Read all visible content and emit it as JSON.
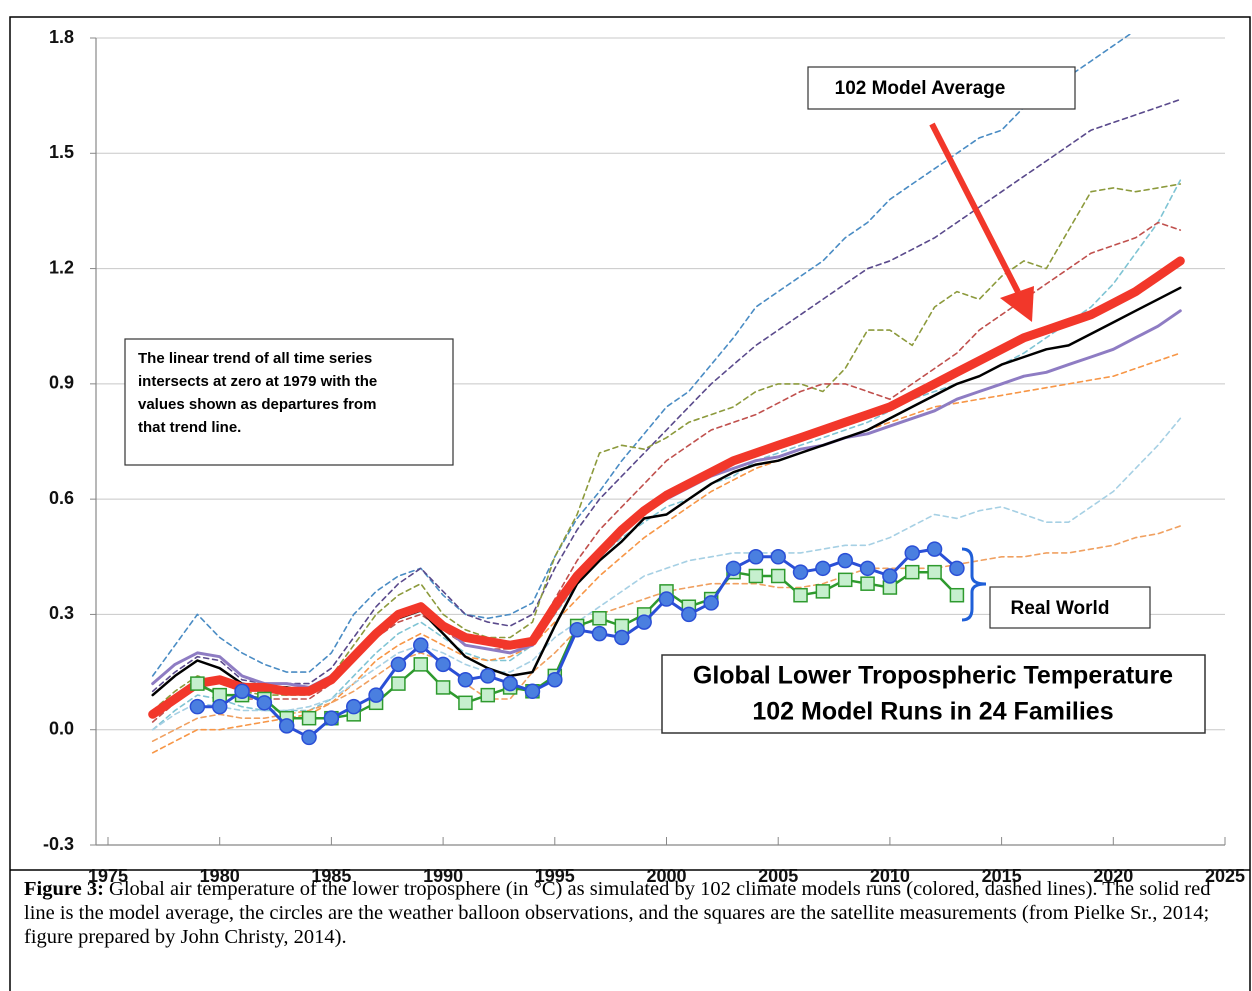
{
  "chart_data": {
    "type": "line",
    "title": "Global Lower Tropospheric Temperature",
    "subtitle": "102 Model Runs in 24 Families",
    "annotations": {
      "model_average": "102 Model Average",
      "trend_note": [
        "The linear trend of all time series",
        "intersects at zero at 1979 with the",
        "values shown as departures from",
        "that trend line."
      ],
      "real_world": "Real World"
    },
    "xlim": [
      1975,
      2025
    ],
    "xticks": [
      1975,
      1980,
      1985,
      1990,
      1995,
      2000,
      2005,
      2010,
      2015,
      2020,
      2025
    ],
    "ylim": [
      -0.3,
      1.8
    ],
    "yticks": [
      -0.3,
      {
        "value": 0,
        "label": "0.0"
      },
      0.3,
      0.6,
      0.9,
      1.2,
      1.5,
      1.8
    ],
    "grid": true,
    "x": [
      1977,
      1978,
      1979,
      1980,
      1981,
      1982,
      1983,
      1984,
      1985,
      1986,
      1987,
      1988,
      1989,
      1990,
      1991,
      1992,
      1993,
      1994,
      1995,
      1996,
      1997,
      1998,
      1999,
      2000,
      2001,
      2002,
      2003,
      2004,
      2005,
      2006,
      2007,
      2008,
      2009,
      2010,
      2011,
      2012,
      2013,
      2014,
      2015,
      2016,
      2017,
      2018,
      2019,
      2020,
      2021,
      2022,
      2023
    ],
    "series": [
      {
        "color": "#4a8cc4",
        "dashed": true,
        "width": 1.6,
        "values": [
          0.14,
          0.22,
          0.3,
          0.24,
          0.2,
          0.17,
          0.15,
          0.15,
          0.2,
          0.3,
          0.36,
          0.4,
          0.42,
          0.35,
          0.3,
          0.29,
          0.3,
          0.33,
          0.45,
          0.55,
          0.62,
          0.7,
          0.77,
          0.84,
          0.88,
          0.95,
          1.02,
          1.1,
          1.14,
          1.18,
          1.22,
          1.28,
          1.32,
          1.38,
          1.42,
          1.46,
          1.5,
          1.54,
          1.56,
          1.62,
          1.66,
          1.7,
          1.74,
          1.78,
          1.82,
          1.86,
          1.9
        ]
      },
      {
        "color": "#5a4a8c",
        "dashed": true,
        "width": 1.6,
        "values": [
          0.1,
          0.15,
          0.19,
          0.18,
          0.13,
          0.12,
          0.12,
          0.12,
          0.16,
          0.24,
          0.32,
          0.38,
          0.42,
          0.36,
          0.3,
          0.28,
          0.27,
          0.3,
          0.42,
          0.52,
          0.6,
          0.66,
          0.72,
          0.78,
          0.84,
          0.9,
          0.95,
          1.0,
          1.04,
          1.08,
          1.12,
          1.16,
          1.2,
          1.22,
          1.25,
          1.28,
          1.32,
          1.36,
          1.4,
          1.44,
          1.48,
          1.52,
          1.56,
          1.58,
          1.6,
          1.62,
          1.64
        ]
      },
      {
        "color": "#8c9a3c",
        "dashed": true,
        "width": 1.6,
        "values": [
          0.05,
          0.1,
          0.14,
          0.12,
          0.1,
          0.09,
          0.09,
          0.09,
          0.14,
          0.22,
          0.3,
          0.35,
          0.38,
          0.3,
          0.26,
          0.24,
          0.24,
          0.28,
          0.45,
          0.56,
          0.72,
          0.74,
          0.73,
          0.76,
          0.8,
          0.82,
          0.84,
          0.88,
          0.9,
          0.9,
          0.88,
          0.94,
          1.04,
          1.04,
          1.0,
          1.1,
          1.14,
          1.12,
          1.18,
          1.22,
          1.2,
          1.3,
          1.4,
          1.41,
          1.4,
          1.41,
          1.42
        ]
      },
      {
        "color": "#7fc4d4",
        "dashed": true,
        "width": 1.6,
        "values": [
          0.0,
          0.05,
          0.09,
          0.08,
          0.06,
          0.05,
          0.05,
          0.05,
          0.08,
          0.14,
          0.2,
          0.25,
          0.28,
          0.24,
          0.2,
          0.18,
          0.18,
          0.22,
          0.3,
          0.38,
          0.45,
          0.5,
          0.54,
          0.58,
          0.6,
          0.64,
          0.66,
          0.7,
          0.72,
          0.74,
          0.76,
          0.78,
          0.8,
          0.83,
          0.86,
          0.88,
          0.9,
          0.92,
          0.95,
          0.98,
          1.02,
          1.06,
          1.1,
          1.16,
          1.24,
          1.32,
          1.43
        ]
      },
      {
        "color": "#c0504d",
        "dashed": true,
        "width": 1.6,
        "values": [
          0.02,
          0.07,
          0.11,
          0.1,
          0.08,
          0.08,
          0.08,
          0.08,
          0.12,
          0.18,
          0.24,
          0.28,
          0.3,
          0.26,
          0.22,
          0.21,
          0.21,
          0.24,
          0.34,
          0.44,
          0.52,
          0.58,
          0.64,
          0.7,
          0.74,
          0.78,
          0.8,
          0.82,
          0.85,
          0.88,
          0.9,
          0.9,
          0.88,
          0.86,
          0.9,
          0.94,
          0.98,
          1.04,
          1.08,
          1.12,
          1.16,
          1.2,
          1.24,
          1.26,
          1.28,
          1.32,
          1.3
        ]
      },
      {
        "color": "#f79646",
        "dashed": true,
        "width": 1.6,
        "values": [
          -0.06,
          -0.03,
          0.0,
          0.0,
          0.01,
          0.02,
          0.03,
          0.04,
          0.07,
          0.12,
          0.18,
          0.22,
          0.25,
          0.22,
          0.19,
          0.18,
          0.19,
          0.22,
          0.28,
          0.34,
          0.4,
          0.45,
          0.5,
          0.54,
          0.58,
          0.62,
          0.65,
          0.68,
          0.7,
          0.72,
          0.74,
          0.76,
          0.78,
          0.8,
          0.82,
          0.84,
          0.85,
          0.86,
          0.87,
          0.88,
          0.89,
          0.9,
          0.91,
          0.92,
          0.94,
          0.96,
          0.98
        ]
      },
      {
        "color": "#f0a060",
        "dashed": true,
        "width": 1.6,
        "values": [
          -0.03,
          0.0,
          0.03,
          0.04,
          0.03,
          0.03,
          0.04,
          0.05,
          0.07,
          0.1,
          0.14,
          0.18,
          0.2,
          0.18,
          0.12,
          0.08,
          0.08,
          0.15,
          0.2,
          0.26,
          0.3,
          0.32,
          0.34,
          0.36,
          0.37,
          0.38,
          0.38,
          0.38,
          0.37,
          0.37,
          0.38,
          0.4,
          0.42,
          0.42,
          0.42,
          0.42,
          0.43,
          0.44,
          0.45,
          0.45,
          0.46,
          0.46,
          0.47,
          0.48,
          0.5,
          0.51,
          0.53
        ]
      },
      {
        "color": "#a6d0e4",
        "dashed": true,
        "width": 1.6,
        "values": [
          0.0,
          0.04,
          0.07,
          0.06,
          0.05,
          0.05,
          0.05,
          0.06,
          0.08,
          0.12,
          0.16,
          0.2,
          0.22,
          0.2,
          0.17,
          0.15,
          0.15,
          0.18,
          0.24,
          0.28,
          0.32,
          0.36,
          0.4,
          0.42,
          0.44,
          0.45,
          0.46,
          0.46,
          0.46,
          0.46,
          0.47,
          0.48,
          0.48,
          0.5,
          0.53,
          0.56,
          0.55,
          0.57,
          0.58,
          0.56,
          0.54,
          0.54,
          0.58,
          0.62,
          0.68,
          0.74,
          0.81
        ]
      },
      {
        "color": "#8e7cc3",
        "width": 3,
        "values": [
          0.12,
          0.17,
          0.2,
          0.19,
          0.14,
          0.12,
          0.12,
          0.11,
          0.14,
          0.2,
          0.26,
          0.3,
          0.32,
          0.27,
          0.22,
          0.21,
          0.2,
          0.22,
          0.31,
          0.4,
          0.46,
          0.52,
          0.57,
          0.6,
          0.63,
          0.66,
          0.68,
          0.7,
          0.71,
          0.73,
          0.74,
          0.76,
          0.77,
          0.79,
          0.81,
          0.83,
          0.86,
          0.88,
          0.9,
          0.92,
          0.93,
          0.95,
          0.97,
          0.99,
          1.02,
          1.05,
          1.09
        ]
      },
      {
        "color": "#000000",
        "width": 2.5,
        "values": [
          0.09,
          0.14,
          0.18,
          0.16,
          0.12,
          0.11,
          0.11,
          0.1,
          0.13,
          0.18,
          0.24,
          0.29,
          0.31,
          0.25,
          0.19,
          0.16,
          0.14,
          0.15,
          0.27,
          0.38,
          0.44,
          0.49,
          0.55,
          0.56,
          0.6,
          0.64,
          0.67,
          0.69,
          0.7,
          0.72,
          0.74,
          0.76,
          0.78,
          0.81,
          0.84,
          0.87,
          0.9,
          0.92,
          0.95,
          0.97,
          0.99,
          1.0,
          1.03,
          1.06,
          1.09,
          1.12,
          1.15
        ]
      },
      {
        "color": "#f2372a",
        "width": 9,
        "values": [
          0.04,
          0.08,
          0.12,
          0.13,
          0.11,
          0.11,
          0.1,
          0.1,
          0.13,
          0.19,
          0.25,
          0.3,
          0.32,
          0.27,
          0.24,
          0.23,
          0.22,
          0.23,
          0.32,
          0.4,
          0.46,
          0.52,
          0.57,
          0.61,
          0.64,
          0.67,
          0.7,
          0.72,
          0.74,
          0.76,
          0.78,
          0.8,
          0.82,
          0.84,
          0.87,
          0.9,
          0.93,
          0.96,
          0.99,
          1.02,
          1.04,
          1.06,
          1.08,
          1.11,
          1.14,
          1.18,
          1.22
        ]
      },
      {
        "color": "#2e9a2e",
        "width": 2.5,
        "marker": "square",
        "marker_fill": "#c6efce",
        "values": [
          null,
          null,
          0.12,
          0.09,
          0.09,
          0.08,
          0.03,
          0.03,
          0.03,
          0.04,
          0.07,
          0.12,
          0.17,
          0.11,
          0.07,
          0.09,
          0.11,
          0.1,
          0.14,
          0.27,
          0.29,
          0.27,
          0.3,
          0.36,
          0.32,
          0.34,
          0.41,
          0.4,
          0.4,
          0.35,
          0.36,
          0.39,
          0.38,
          0.37,
          0.41,
          0.41,
          0.35,
          null,
          null,
          null,
          null,
          null,
          null,
          null,
          null,
          null,
          null
        ]
      },
      {
        "color": "#2a4fd6",
        "width": 3,
        "marker": "circle",
        "marker_fill": "#4a7fe0",
        "values": [
          null,
          null,
          0.06,
          0.06,
          0.1,
          0.07,
          0.01,
          -0.02,
          0.03,
          0.06,
          0.09,
          0.17,
          0.22,
          0.17,
          0.13,
          0.14,
          0.12,
          0.1,
          0.13,
          0.26,
          0.25,
          0.24,
          0.28,
          0.34,
          0.3,
          0.33,
          0.42,
          0.45,
          0.45,
          0.41,
          0.42,
          0.44,
          0.42,
          0.4,
          0.46,
          0.47,
          0.42,
          null,
          null,
          null,
          null,
          null,
          null,
          null,
          null,
          null,
          null
        ]
      }
    ]
  },
  "caption": {
    "label": "Figure 3:",
    "text": "Global air temperature of the lower troposphere (in °C) as simulated by 102 climate models runs (colored, dashed lines). The solid red line is the model average, the circles are the weather balloon observations, and the squares are the satellite measurements (from Pielke Sr., 2014; figure prepared by John Christy, 2014)."
  }
}
